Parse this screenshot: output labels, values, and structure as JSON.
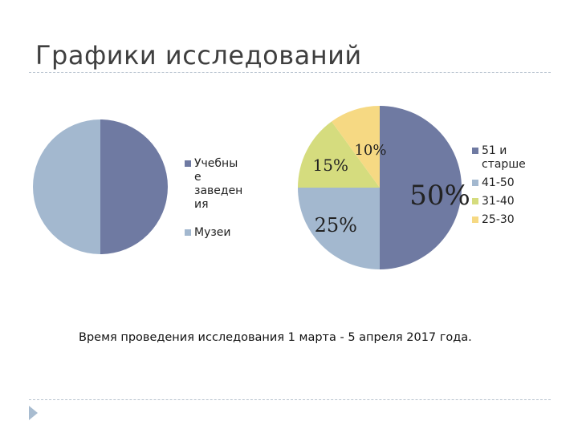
{
  "slide": {
    "title": "Графики исследований",
    "note": "Время проведения  исследования 1 марта - 5 апреля 2017 года."
  },
  "chart_data": [
    {
      "type": "pie",
      "categories": [
        "Учебные заведения",
        "Музеи"
      ],
      "legend_lines": [
        [
          "Учебны",
          "е",
          "заведен",
          "ия"
        ],
        [
          "Музеи"
        ]
      ],
      "values": [
        50,
        50
      ],
      "colors": [
        "#6f7aa2",
        "#a3b8cf"
      ],
      "legend": "right",
      "data_labels": []
    },
    {
      "type": "pie",
      "categories": [
        "51 и старше",
        "41-50",
        "31-40",
        "25-30"
      ],
      "legend_lines": [
        [
          "51 и",
          "старше"
        ],
        [
          "41-50"
        ],
        [
          "31-40"
        ],
        [
          "25-30"
        ]
      ],
      "values": [
        50,
        25,
        15,
        10
      ],
      "colors": [
        "#6f7aa2",
        "#a3b8cf",
        "#d5dc7e",
        "#f6d983"
      ],
      "legend": "right",
      "data_labels": [
        "50%",
        "25%",
        "15%",
        "10%"
      ]
    }
  ]
}
